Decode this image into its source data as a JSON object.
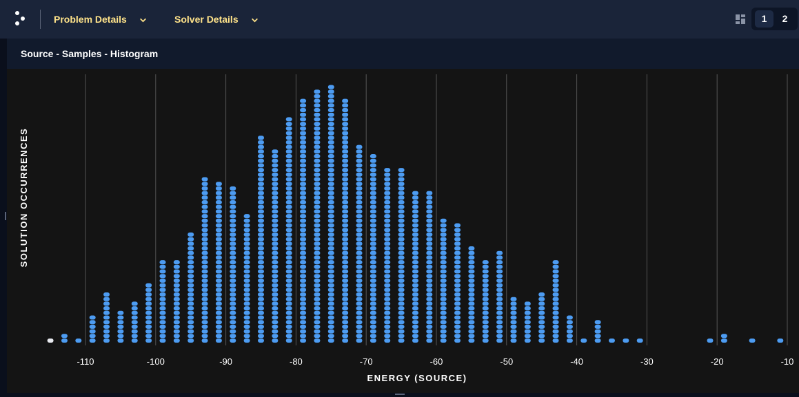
{
  "header": {
    "menus": [
      {
        "label": "Problem Details"
      },
      {
        "label": "Solver Details"
      }
    ],
    "pages": [
      "1",
      "2"
    ],
    "active_page": "1"
  },
  "panel": {
    "title": "Source - Samples - Histogram"
  },
  "colors": {
    "dot": "#4d9cf2",
    "lowest_dot": "#e8eaf0",
    "grid": "#555555",
    "accent_text": "#ffe38a"
  },
  "chart_data": {
    "type": "scatter",
    "title": "",
    "xlabel": "ENERGY (SOURCE)",
    "ylabel": "SOLUTION OCCURRENCES",
    "xlim": [
      -116,
      -9
    ],
    "ylim": [
      0,
      56
    ],
    "grid": "vertical",
    "x_ticks": [
      -110,
      -100,
      -90,
      -80,
      -70,
      -60,
      -50,
      -40,
      -30,
      -20,
      -10
    ],
    "x_tick_labels": [
      "-110",
      "-100",
      "-90",
      "-80",
      "-70",
      "-60",
      "-50",
      "-40",
      "-30",
      "-20",
      "-10"
    ],
    "energies": [
      -115,
      -113,
      -111,
      -109,
      -107,
      -105,
      -103,
      -101,
      -99,
      -97,
      -95,
      -93,
      -91,
      -89,
      -87,
      -85,
      -83,
      -81,
      -79,
      -77,
      -75,
      -73,
      -71,
      -69,
      -67,
      -65,
      -63,
      -61,
      -59,
      -57,
      -55,
      -53,
      -51,
      -49,
      -47,
      -45,
      -43,
      -41,
      -39,
      -37,
      -35,
      -33,
      -31,
      -21,
      -19,
      -15,
      -11
    ],
    "occurrences": [
      1,
      2,
      1,
      6,
      11,
      7,
      9,
      13,
      18,
      18,
      24,
      36,
      35,
      34,
      28,
      45,
      42,
      49,
      53,
      55,
      56,
      53,
      43,
      41,
      38,
      38,
      33,
      33,
      27,
      26,
      21,
      18,
      20,
      10,
      9,
      11,
      18,
      6,
      1,
      5,
      1,
      1,
      1,
      1,
      2,
      1,
      1
    ],
    "lowest_energy": -115
  }
}
